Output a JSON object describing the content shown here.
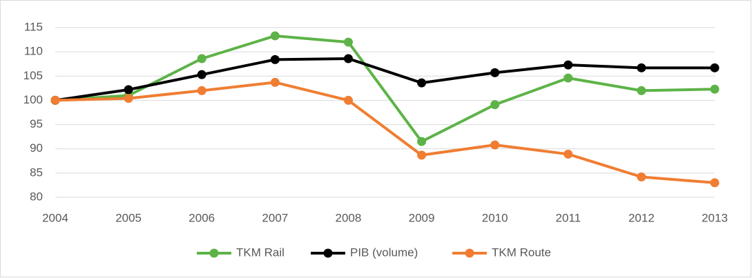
{
  "chart_data": {
    "type": "line",
    "x": [
      2004,
      2005,
      2006,
      2007,
      2008,
      2009,
      2010,
      2011,
      2012,
      2013
    ],
    "series": [
      {
        "name": "TKM Rail",
        "color": "#5db347",
        "values": [
          100,
          101,
          108.6,
          113.3,
          112,
          91.5,
          99.1,
          104.6,
          102,
          102.3
        ]
      },
      {
        "name": "PIB (volume)",
        "color": "#000000",
        "values": [
          100,
          102.2,
          105.3,
          108.4,
          108.6,
          103.6,
          105.7,
          107.3,
          106.7,
          106.7
        ]
      },
      {
        "name": "TKM Route",
        "color": "#f07d32",
        "values": [
          100,
          100.4,
          102,
          103.7,
          100,
          88.7,
          90.8,
          88.9,
          84.2,
          83
        ]
      }
    ],
    "xlim": [
      2004,
      2013
    ],
    "xticks": [
      2004,
      2005,
      2006,
      2007,
      2008,
      2009,
      2010,
      2011,
      2012,
      2013
    ],
    "ylim": [
      80,
      115
    ],
    "yticks": [
      80,
      85,
      90,
      95,
      100,
      105,
      110,
      115
    ],
    "grid": true,
    "legend": "bottom"
  }
}
